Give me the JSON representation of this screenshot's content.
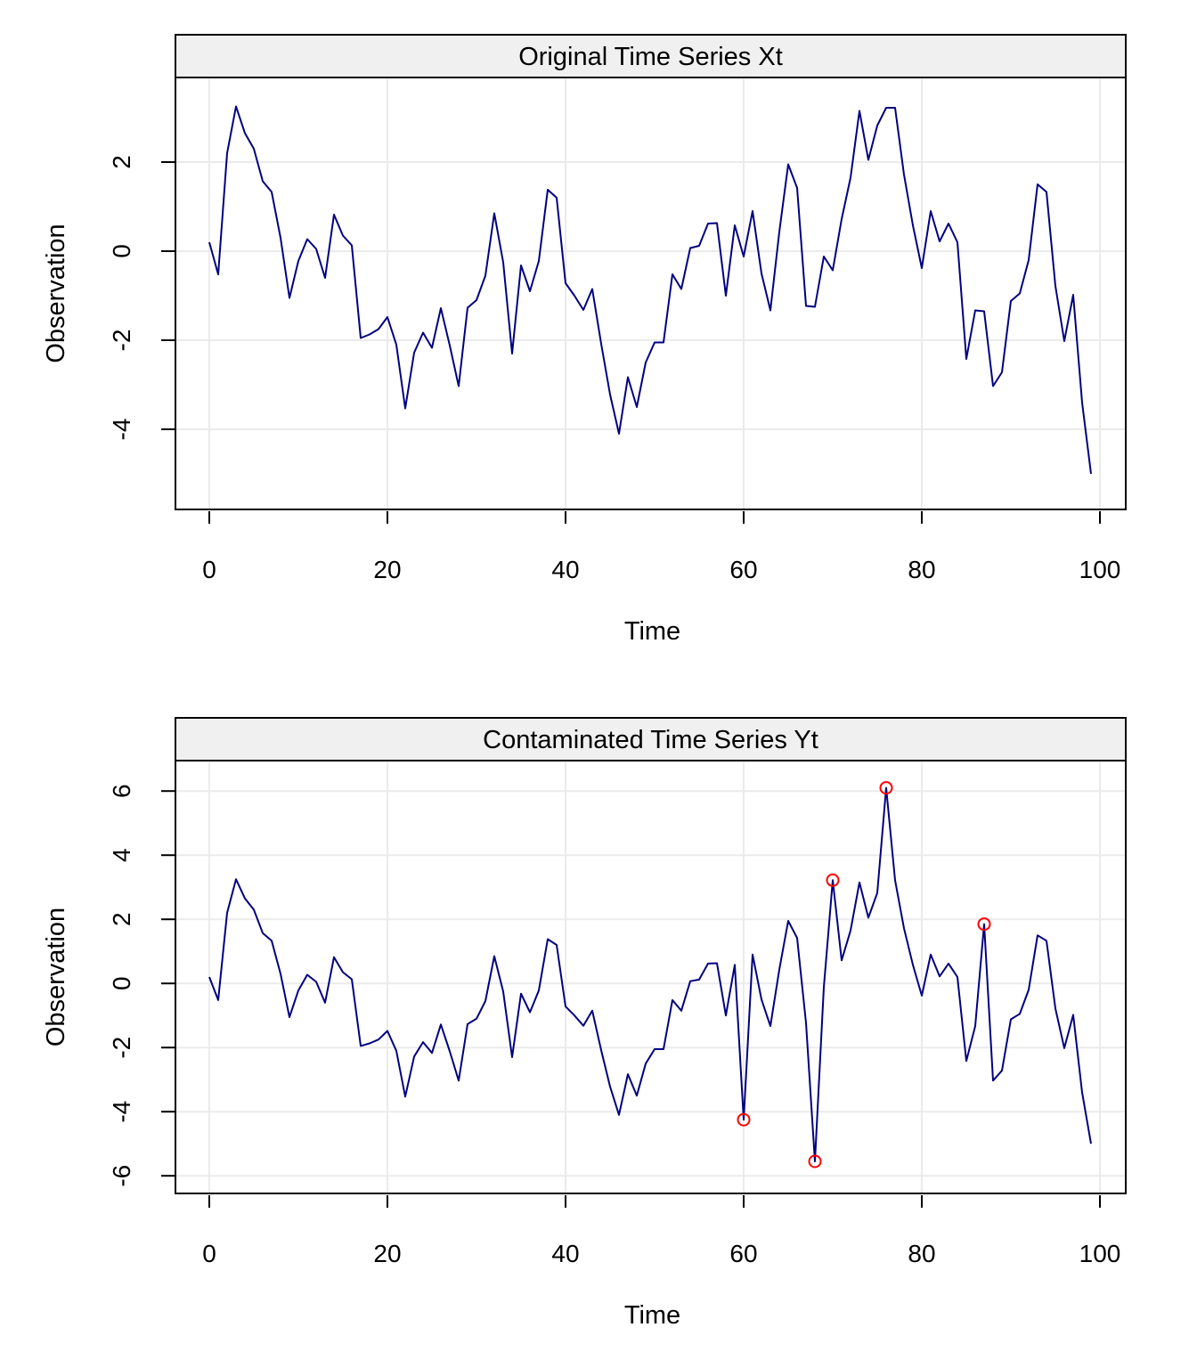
{
  "chart_data": [
    {
      "type": "line",
      "title": "Original Time Series Xt",
      "xlabel": "Time",
      "ylabel": "Observation",
      "xlim": [
        0,
        100
      ],
      "ylim": [
        -5.8,
        3.9
      ],
      "xticks": [
        "0",
        "20",
        "40",
        "60",
        "80",
        "100"
      ],
      "yticks": [
        "-4",
        "-2",
        "0",
        "2"
      ],
      "grid": true,
      "line_color": "#000080",
      "x_start": 0,
      "values": [
        0.2,
        -0.52,
        2.2,
        3.25,
        2.65,
        2.3,
        1.57,
        1.33,
        0.3,
        -1.05,
        -0.22,
        0.27,
        0.05,
        -0.6,
        0.82,
        0.35,
        0.13,
        -1.95,
        -1.87,
        -1.75,
        -1.48,
        -2.1,
        -3.53,
        -2.28,
        -1.83,
        -2.17,
        -1.28,
        -2.12,
        -3.03,
        -1.27,
        -1.1,
        -0.55,
        0.85,
        -0.25,
        -2.3,
        -0.32,
        -0.9,
        -0.22,
        1.38,
        1.2,
        -0.72,
        -1.0,
        -1.32,
        -0.85,
        -2.08,
        -3.22,
        -4.1,
        -2.83,
        -3.5,
        -2.5,
        -2.05,
        -2.05,
        -0.52,
        -0.85,
        0.07,
        0.12,
        0.62,
        0.63,
        -1.0,
        0.58,
        -0.12,
        0.9,
        -0.5,
        -1.33,
        0.43,
        1.95,
        1.42,
        -1.23,
        -1.25,
        -0.12,
        -0.43,
        0.72,
        1.65,
        3.15,
        2.05,
        2.82,
        3.22,
        3.22,
        1.72,
        0.58,
        -0.38,
        0.9,
        0.22,
        0.62,
        0.2,
        -2.42,
        -1.33,
        -1.35,
        -3.03,
        -2.72,
        -1.12,
        -0.95,
        -0.2,
        1.5,
        1.33,
        -0.78,
        -2.02,
        -0.98,
        -3.4,
        -5.0
      ]
    },
    {
      "type": "line",
      "title": "Contaminated Time Series Yt",
      "xlabel": "Time",
      "ylabel": "Observation",
      "xlim": [
        0,
        100
      ],
      "ylim": [
        -6.55,
        6.95
      ],
      "xticks": [
        "0",
        "20",
        "40",
        "60",
        "80",
        "100"
      ],
      "yticks": [
        "-6",
        "-4",
        "-2",
        "0",
        "2",
        "4",
        "6"
      ],
      "grid": true,
      "line_color": "#000080",
      "outlier_color": "#ff0000",
      "x_start": 0,
      "values": [
        0.2,
        -0.52,
        2.2,
        3.25,
        2.65,
        2.3,
        1.57,
        1.33,
        0.3,
        -1.05,
        -0.22,
        0.27,
        0.05,
        -0.6,
        0.82,
        0.35,
        0.13,
        -1.95,
        -1.87,
        -1.75,
        -1.48,
        -2.1,
        -3.53,
        -2.28,
        -1.83,
        -2.17,
        -1.28,
        -2.12,
        -3.03,
        -1.27,
        -1.1,
        -0.55,
        0.85,
        -0.25,
        -2.3,
        -0.32,
        -0.9,
        -0.22,
        1.38,
        1.2,
        -0.72,
        -1.0,
        -1.32,
        -0.85,
        -2.08,
        -3.22,
        -4.1,
        -2.83,
        -3.5,
        -2.5,
        -2.05,
        -2.05,
        -0.52,
        -0.85,
        0.07,
        0.12,
        0.62,
        0.63,
        -1.0,
        0.58,
        -4.25,
        0.9,
        -0.5,
        -1.33,
        0.43,
        1.95,
        1.42,
        -1.23,
        -5.55,
        -0.12,
        3.22,
        0.72,
        1.65,
        3.15,
        2.05,
        2.82,
        6.1,
        3.22,
        1.72,
        0.58,
        -0.38,
        0.9,
        0.22,
        0.62,
        0.2,
        -2.42,
        -1.33,
        1.85,
        -3.03,
        -2.72,
        -1.12,
        -0.95,
        -0.2,
        1.5,
        1.33,
        -0.78,
        -2.02,
        -0.98,
        -3.4,
        -5.0
      ],
      "outliers": [
        {
          "x": 60,
          "y": -4.25
        },
        {
          "x": 68,
          "y": -5.55
        },
        {
          "x": 70,
          "y": 3.22
        },
        {
          "x": 76,
          "y": 6.1
        },
        {
          "x": 87,
          "y": 1.85
        }
      ]
    }
  ]
}
